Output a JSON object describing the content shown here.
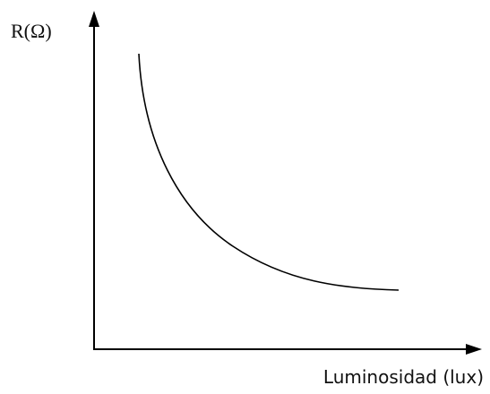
{
  "axes": {
    "y_label": "R(Ω)",
    "x_label": "Luminosidad (lux)"
  }
}
